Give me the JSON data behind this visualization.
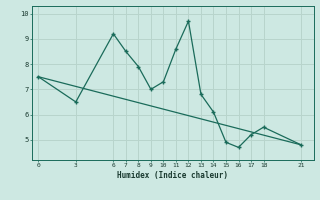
{
  "xlabel": "Humidex (Indice chaleur)",
  "ylabel": "",
  "background_color": "#cde8e2",
  "line_color": "#1a6b5a",
  "grid_color": "#b8d4cc",
  "x_data": [
    0,
    3,
    6,
    7,
    8,
    9,
    10,
    11,
    12,
    13,
    14,
    15,
    16,
    17,
    18,
    21
  ],
  "y_data": [
    7.5,
    6.5,
    9.2,
    8.5,
    7.9,
    7.0,
    7.3,
    8.6,
    9.7,
    6.8,
    6.1,
    4.9,
    4.7,
    5.2,
    5.5,
    4.8
  ],
  "trend_x": [
    0,
    21
  ],
  "trend_y": [
    7.5,
    4.8
  ],
  "xticks": [
    0,
    3,
    6,
    7,
    8,
    9,
    10,
    11,
    12,
    13,
    14,
    15,
    16,
    17,
    18,
    21
  ],
  "yticks": [
    5,
    6,
    7,
    8,
    9,
    10
  ],
  "ylim": [
    4.2,
    10.3
  ],
  "xlim": [
    -0.5,
    22
  ]
}
